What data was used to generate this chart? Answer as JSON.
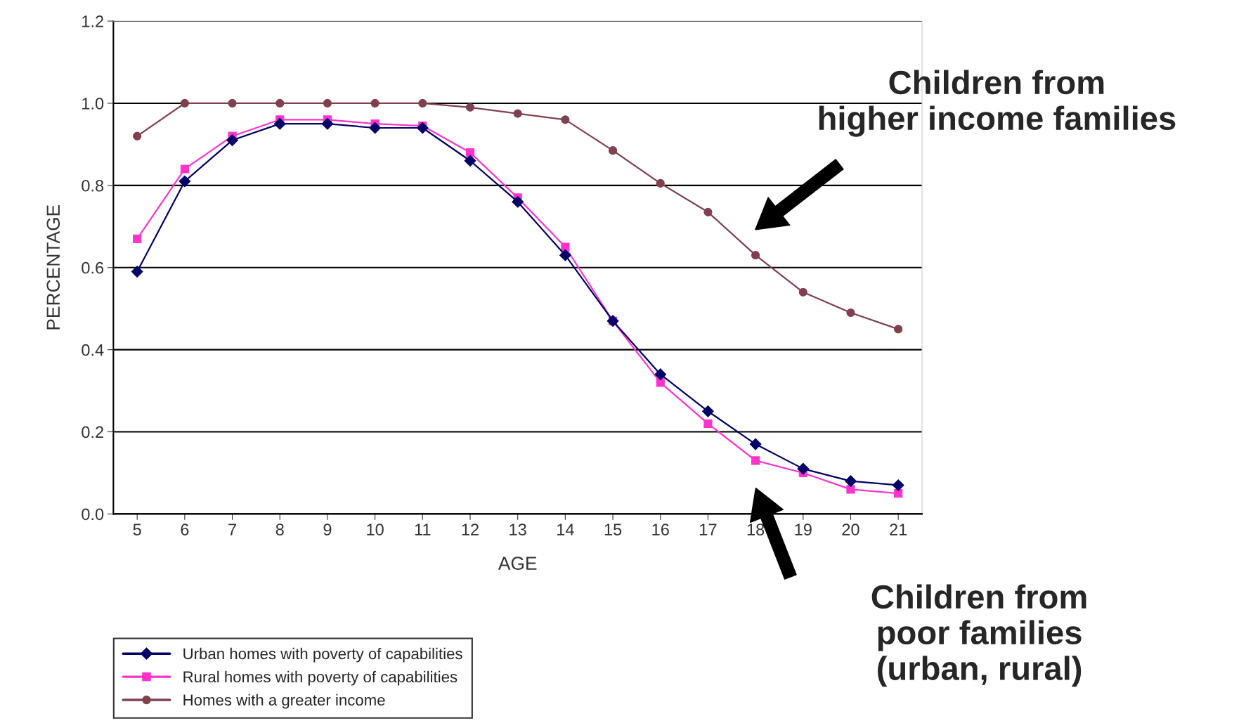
{
  "chart_data": {
    "type": "line",
    "xlabel": "AGE",
    "ylabel": "PERCENTAGE",
    "categories": [
      "5",
      "6",
      "7",
      "8",
      "9",
      "10",
      "11",
      "12",
      "13",
      "14",
      "15",
      "16",
      "17",
      "18",
      "19",
      "20",
      "21"
    ],
    "series": [
      {
        "name": "Urban homes with poverty of capabilities",
        "color": "#000066",
        "marker": "diamond",
        "values": [
          0.59,
          0.81,
          0.91,
          0.95,
          0.95,
          0.94,
          0.94,
          0.86,
          0.76,
          0.63,
          0.47,
          0.34,
          0.25,
          0.17,
          0.11,
          0.08,
          0.07
        ]
      },
      {
        "name": "Rural homes with poverty of capabilities",
        "color": "#ff33cc",
        "marker": "square",
        "values": [
          0.67,
          0.84,
          0.92,
          0.96,
          0.96,
          0.95,
          0.945,
          0.88,
          0.77,
          0.65,
          0.47,
          0.32,
          0.22,
          0.13,
          0.1,
          0.06,
          0.05
        ]
      },
      {
        "name": "Homes with a greater income",
        "color": "#804050",
        "marker": "circle",
        "values": [
          0.92,
          1.0,
          1.0,
          1.0,
          1.0,
          1.0,
          1.0,
          0.99,
          0.975,
          0.96,
          0.885,
          0.805,
          0.735,
          0.63,
          0.54,
          0.49,
          0.45
        ]
      }
    ],
    "ylim": [
      0,
      1.2
    ],
    "yticks": [
      {
        "value": 0,
        "label": "0.0"
      },
      {
        "value": 0.2,
        "label": "0.2"
      },
      {
        "value": 0.4,
        "label": "0.4"
      },
      {
        "value": 0.6,
        "label": "0.6"
      },
      {
        "value": 0.8,
        "label": "0.8"
      },
      {
        "value": 1.0,
        "label": "1.0"
      },
      {
        "value": 1.2,
        "label": "1.2"
      }
    ],
    "grid": "y",
    "legend": "bottom left",
    "annotations": [
      "Children from\nhigher income families",
      "Children from\npoor families\n(urban, rural)"
    ]
  }
}
